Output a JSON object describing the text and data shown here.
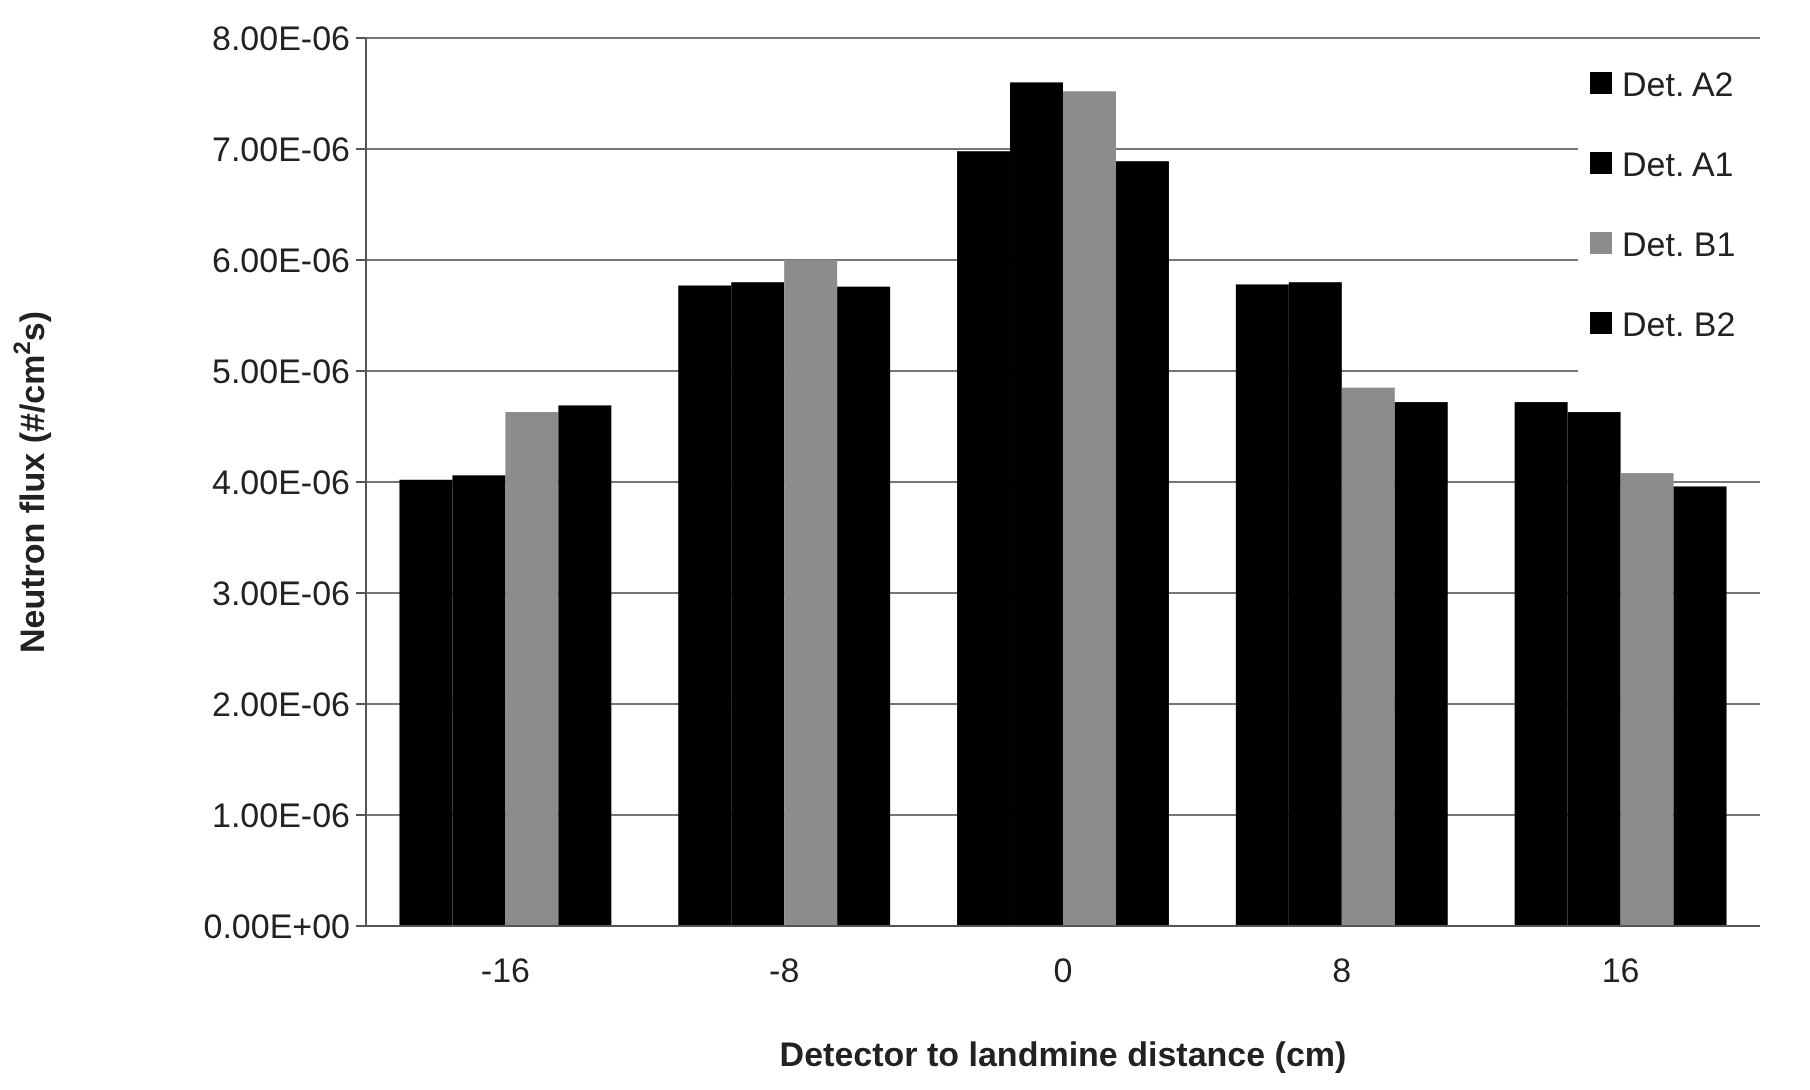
{
  "chart_data": {
    "type": "bar",
    "xlabel": "Detector to landmine distance (cm)",
    "ylabel": "Neutron flux (#/cm$^{2}$s)",
    "categories": [
      "-16",
      "-8",
      "0",
      "8",
      "16"
    ],
    "series": [
      {
        "name": "Det. A2",
        "color": "#000000",
        "values": [
          4.02e-06,
          5.77e-06,
          6.98e-06,
          5.78e-06,
          4.72e-06
        ]
      },
      {
        "name": "Det. A1",
        "color": "#000000",
        "values": [
          4.06e-06,
          5.8e-06,
          7.6e-06,
          5.8e-06,
          4.63e-06
        ]
      },
      {
        "name": "Det. B1",
        "color": "#8c8c8c",
        "values": [
          4.63e-06,
          6e-06,
          7.52e-06,
          4.85e-06,
          4.08e-06
        ]
      },
      {
        "name": "Det. B2",
        "color": "#000000",
        "values": [
          4.69e-06,
          5.76e-06,
          6.89e-06,
          4.72e-06,
          3.96e-06
        ]
      }
    ],
    "ylim": [
      0,
      8e-06
    ],
    "yticks": [
      {
        "value": 0,
        "label": "0.00E+00"
      },
      {
        "value": 1e-06,
        "label": "1.00E-06"
      },
      {
        "value": 2e-06,
        "label": "2.00E-06"
      },
      {
        "value": 3e-06,
        "label": "3.00E-06"
      },
      {
        "value": 4e-06,
        "label": "4.00E-06"
      },
      {
        "value": 5e-06,
        "label": "5.00E-06"
      },
      {
        "value": 6e-06,
        "label": "6.00E-06"
      },
      {
        "value": 7e-06,
        "label": "7.00E-06"
      },
      {
        "value": 8e-06,
        "label": "8.00E-06"
      }
    ],
    "grid": "y",
    "legend": "top right"
  }
}
